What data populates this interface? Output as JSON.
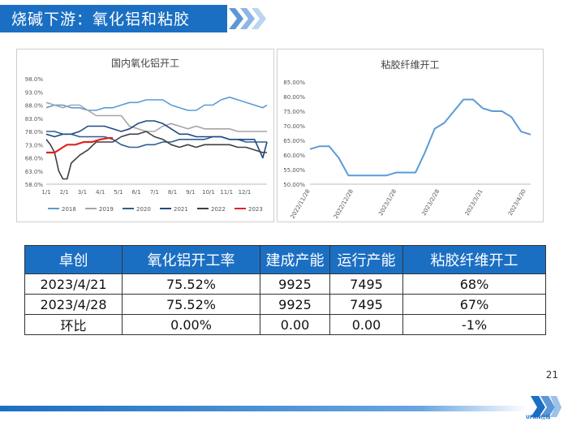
{
  "header": {
    "title": "烧碱下游：氧化铝和粘胶"
  },
  "left_chart": {
    "title": "国内氧化铝开工",
    "y_ticks": [
      "98.0%",
      "93.0%",
      "88.0%",
      "83.0%",
      "78.0%",
      "73.0%",
      "68.0%",
      "63.0%",
      "58.0%"
    ],
    "x_ticks": [
      "1/1",
      "2/1",
      "3/1",
      "4/1",
      "5/1",
      "6/1",
      "7/1",
      "8/1",
      "9/1",
      "10/1",
      "11/1",
      "12/1"
    ],
    "legend": [
      "2018",
      "2019",
      "2020",
      "2021",
      "2022",
      "2023"
    ]
  },
  "right_chart": {
    "title": "粘胶纤维开工",
    "y_ticks": [
      "85.00%",
      "80.00%",
      "75.00%",
      "70.00%",
      "65.00%",
      "60.00%",
      "55.00%",
      "50.00%"
    ],
    "x_ticks": [
      "2022/11/28",
      "2022/12/28",
      "2023/1/28",
      "2023/2/28",
      "2023/3/31",
      "2023/4/30"
    ]
  },
  "chart_data": [
    {
      "type": "line",
      "title": "国内氧化铝开工",
      "xlabel": "",
      "ylabel": "",
      "x_unit": "week index (0 = 1/1, 4.33 per month)",
      "categories": [
        "1/1",
        "2/1",
        "3/1",
        "4/1",
        "5/1",
        "6/1",
        "7/1",
        "8/1",
        "9/1",
        "10/1",
        "11/1",
        "12/1"
      ],
      "ylim": [
        58,
        98
      ],
      "series": [
        {
          "name": "2018",
          "color": "#5b9bd5",
          "values": [
            [
              0,
              87
            ],
            [
              2,
              88
            ],
            [
              4,
              88
            ],
            [
              6,
              87
            ],
            [
              8,
              87
            ],
            [
              10,
              86
            ],
            [
              12,
              86
            ],
            [
              14,
              87
            ],
            [
              16,
              87
            ],
            [
              18,
              88
            ],
            [
              20,
              89
            ],
            [
              22,
              89
            ],
            [
              24,
              90
            ],
            [
              26,
              90
            ],
            [
              28,
              90
            ],
            [
              30,
              88
            ],
            [
              32,
              87
            ],
            [
              34,
              86
            ],
            [
              36,
              86
            ],
            [
              38,
              88
            ],
            [
              40,
              88
            ],
            [
              42,
              90
            ],
            [
              44,
              91
            ],
            [
              46,
              90
            ],
            [
              48,
              89
            ],
            [
              50,
              88
            ],
            [
              52,
              87
            ],
            [
              53,
              88
            ]
          ]
        },
        {
          "name": "2019",
          "color": "#a5a5a5",
          "values": [
            [
              0,
              89
            ],
            [
              2,
              88
            ],
            [
              4,
              87
            ],
            [
              6,
              88
            ],
            [
              8,
              88
            ],
            [
              10,
              86
            ],
            [
              12,
              84
            ],
            [
              14,
              84
            ],
            [
              16,
              84
            ],
            [
              18,
              84
            ],
            [
              20,
              80
            ],
            [
              22,
              79
            ],
            [
              24,
              78
            ],
            [
              26,
              78
            ],
            [
              28,
              80
            ],
            [
              30,
              81
            ],
            [
              32,
              80
            ],
            [
              34,
              79
            ],
            [
              36,
              80
            ],
            [
              38,
              79
            ],
            [
              40,
              79
            ],
            [
              42,
              79
            ],
            [
              44,
              79
            ],
            [
              46,
              78
            ],
            [
              48,
              78
            ],
            [
              50,
              78
            ],
            [
              52,
              78
            ],
            [
              53,
              78
            ]
          ]
        },
        {
          "name": "2020",
          "color": "#2e5f94",
          "values": [
            [
              0,
              78
            ],
            [
              2,
              78
            ],
            [
              4,
              77
            ],
            [
              6,
              77
            ],
            [
              8,
              76
            ],
            [
              10,
              76
            ],
            [
              12,
              76
            ],
            [
              14,
              76
            ],
            [
              16,
              75
            ],
            [
              18,
              73
            ],
            [
              20,
              72
            ],
            [
              22,
              72
            ],
            [
              24,
              73
            ],
            [
              26,
              73
            ],
            [
              28,
              74
            ],
            [
              30,
              74
            ],
            [
              32,
              75
            ],
            [
              34,
              75
            ],
            [
              36,
              75
            ],
            [
              38,
              75
            ],
            [
              40,
              76
            ],
            [
              42,
              76
            ],
            [
              44,
              75
            ],
            [
              46,
              75
            ],
            [
              48,
              74
            ],
            [
              50,
              74
            ],
            [
              52,
              74
            ],
            [
              53,
              74
            ]
          ]
        },
        {
          "name": "2021",
          "color": "#214a84",
          "values": [
            [
              0,
              77
            ],
            [
              2,
              76
            ],
            [
              4,
              77
            ],
            [
              6,
              77
            ],
            [
              8,
              78
            ],
            [
              10,
              80
            ],
            [
              12,
              80
            ],
            [
              14,
              80
            ],
            [
              16,
              79
            ],
            [
              18,
              78
            ],
            [
              20,
              79
            ],
            [
              22,
              81
            ],
            [
              24,
              82
            ],
            [
              26,
              82
            ],
            [
              28,
              81
            ],
            [
              30,
              79
            ],
            [
              32,
              77
            ],
            [
              34,
              77
            ],
            [
              36,
              76
            ],
            [
              38,
              76
            ],
            [
              40,
              76
            ],
            [
              42,
              76
            ],
            [
              44,
              75
            ],
            [
              46,
              75
            ],
            [
              48,
              75
            ],
            [
              50,
              75
            ],
            [
              52,
              68
            ],
            [
              53,
              74
            ]
          ]
        },
        {
          "name": "2022",
          "color": "#404040",
          "values": [
            [
              0,
              75
            ],
            [
              1,
              73
            ],
            [
              2,
              70
            ],
            [
              3,
              63
            ],
            [
              4,
              60
            ],
            [
              5,
              60
            ],
            [
              6,
              66
            ],
            [
              8,
              69
            ],
            [
              10,
              71
            ],
            [
              12,
              74
            ],
            [
              14,
              74
            ],
            [
              16,
              74
            ],
            [
              18,
              76
            ],
            [
              20,
              77
            ],
            [
              22,
              77
            ],
            [
              24,
              78
            ],
            [
              26,
              76
            ],
            [
              28,
              75
            ],
            [
              30,
              73
            ],
            [
              32,
              72
            ],
            [
              34,
              73
            ],
            [
              36,
              72
            ],
            [
              38,
              73
            ],
            [
              40,
              73
            ],
            [
              42,
              73
            ],
            [
              44,
              73
            ],
            [
              46,
              72
            ],
            [
              48,
              72
            ],
            [
              50,
              71
            ],
            [
              52,
              70
            ],
            [
              53,
              70
            ]
          ]
        },
        {
          "name": "2023",
          "color": "#e0231f",
          "values": [
            [
              0,
              70
            ],
            [
              2,
              70
            ],
            [
              3,
              71
            ],
            [
              4,
              72
            ],
            [
              5,
              73
            ],
            [
              7,
              73
            ],
            [
              9,
              74
            ],
            [
              11,
              74
            ],
            [
              13,
              75
            ],
            [
              15,
              75.5
            ],
            [
              16,
              75.5
            ]
          ]
        }
      ]
    },
    {
      "type": "line",
      "title": "粘胶纤维开工",
      "xlabel": "",
      "ylabel": "",
      "x_ticks": [
        "2022/11/28",
        "2022/12/28",
        "2023/1/28",
        "2023/2/28",
        "2023/3/31",
        "2023/4/30"
      ],
      "ylim": [
        50,
        85
      ],
      "series": [
        {
          "name": "",
          "color": "#5b9bd5",
          "values": [
            [
              0,
              62
            ],
            [
              1,
              63
            ],
            [
              2,
              63
            ],
            [
              3,
              59
            ],
            [
              4,
              53
            ],
            [
              5,
              53
            ],
            [
              6,
              53
            ],
            [
              7,
              53
            ],
            [
              8,
              53
            ],
            [
              9,
              54
            ],
            [
              10,
              54
            ],
            [
              11,
              54
            ],
            [
              12,
              61
            ],
            [
              13,
              69
            ],
            [
              14,
              71
            ],
            [
              15,
              75
            ],
            [
              16,
              79
            ],
            [
              17,
              79
            ],
            [
              18,
              76
            ],
            [
              19,
              75
            ],
            [
              20,
              75
            ],
            [
              21,
              73
            ],
            [
              22,
              68
            ],
            [
              23,
              67
            ]
          ]
        }
      ]
    }
  ],
  "table": {
    "headers": [
      "卓创",
      "氧化铝开工率",
      "建成产能",
      "运行产能",
      "粘胶纤维开工"
    ],
    "rows": [
      [
        "2023/4/21",
        "75.52%",
        "9925",
        "7495",
        "68%"
      ],
      [
        "2023/4/28",
        "75.52%",
        "9925",
        "7495",
        "67%"
      ],
      [
        "环比",
        "0.00%",
        "0.00",
        "0.00",
        "-1%"
      ]
    ]
  },
  "footer": {
    "page_number": "21",
    "logo_text": "UPAN在线"
  },
  "colors": {
    "brand_blue": "#1b6fc3"
  }
}
